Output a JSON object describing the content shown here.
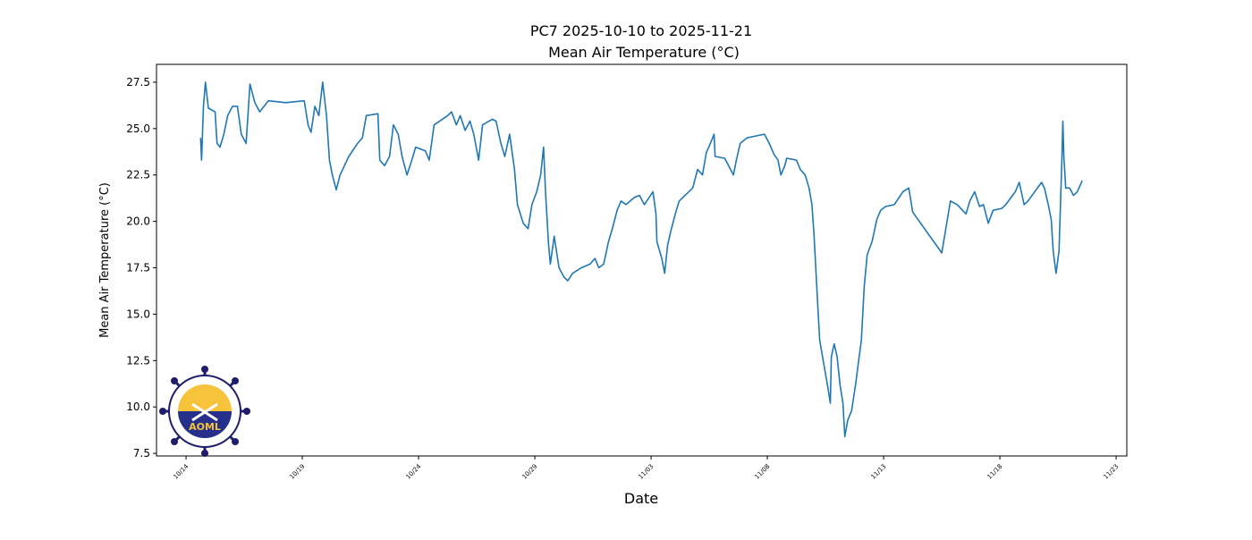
{
  "chart_data": {
    "type": "line",
    "title": "PC7 2025-10-10 to 2025-11-21",
    "subtitle": "Mean Air Temperature (°C)",
    "xlabel": "Date",
    "ylabel": "Mean Air Temperature (°C)",
    "color": "#1f77b4",
    "xlim": [
      "2025-10-12T17:30",
      "2025-11-23T11:00"
    ],
    "ylim": [
      7.36,
      28.46
    ],
    "xticks": [
      {
        "value": "2025-10-14T00:00",
        "label": "10/14"
      },
      {
        "value": "2025-10-19T00:00",
        "label": "10/19"
      },
      {
        "value": "2025-10-24T00:00",
        "label": "10/24"
      },
      {
        "value": "2025-10-29T00:00",
        "label": "10/29"
      },
      {
        "value": "2025-11-03T00:00",
        "label": "11/03"
      },
      {
        "value": "2025-11-08T00:00",
        "label": "11/08"
      },
      {
        "value": "2025-11-13T00:00",
        "label": "11/13"
      },
      {
        "value": "2025-11-18T00:00",
        "label": "11/18"
      },
      {
        "value": "2025-11-23T00:00",
        "label": "11/23"
      }
    ],
    "yticks": [
      7.5,
      {
        "value": 10,
        "label": "10.0"
      },
      12.5,
      {
        "value": 15,
        "label": "15.0"
      },
      17.5,
      {
        "value": 20,
        "label": "20.0"
      },
      22.5,
      {
        "value": 25,
        "label": "25.0"
      },
      27.5
    ],
    "x": [
      "2025-10-14T15:00",
      "2025-10-14T16:00",
      "2025-10-14T18:00",
      "2025-10-14T20:00",
      "2025-10-14T23:00",
      "2025-10-15T06:00",
      "2025-10-15T08:00",
      "2025-10-15T11:00",
      "2025-10-15T15:00",
      "2025-10-15T19:00",
      "2025-10-16T00:00",
      "2025-10-16T05:00",
      "2025-10-16T09:00",
      "2025-10-16T14:00",
      "2025-10-16T18:00",
      "2025-10-16T23:00",
      "2025-10-17T04:00",
      "2025-10-17T13:00",
      "2025-10-18T07:00",
      "2025-10-19T02:00",
      "2025-10-19T06:00",
      "2025-10-19T09:00",
      "2025-10-19T13:00",
      "2025-10-19T17:00",
      "2025-10-19T21:00",
      "2025-10-20T01:00",
      "2025-10-20T04:00",
      "2025-10-20T07:00",
      "2025-10-20T11:00",
      "2025-10-20T15:00",
      "2025-10-21T00:00",
      "2025-10-21T09:00",
      "2025-10-21T14:00",
      "2025-10-21T18:00",
      "2025-10-22T06:00",
      "2025-10-22T08:00",
      "2025-10-22T13:00",
      "2025-10-22T18:00",
      "2025-10-22T22:00",
      "2025-10-23T03:00",
      "2025-10-23T07:00",
      "2025-10-23T12:00",
      "2025-10-23T17:00",
      "2025-10-23T21:00",
      "2025-10-24T07:00",
      "2025-10-24T11:00",
      "2025-10-24T16:00",
      "2025-10-25T06:00",
      "2025-10-25T10:00",
      "2025-10-25T15:00",
      "2025-10-25T19:00",
      "2025-10-26T00:00",
      "2025-10-26T05:00",
      "2025-10-26T09:00",
      "2025-10-26T14:00",
      "2025-10-26T18:00",
      "2025-10-27T04:00",
      "2025-10-27T08:00",
      "2025-10-27T13:00",
      "2025-10-27T17:00",
      "2025-10-27T22:00",
      "2025-10-28T03:00",
      "2025-10-28T06:00",
      "2025-10-28T12:00",
      "2025-10-28T17:00",
      "2025-10-28T21:00",
      "2025-10-29T02:00",
      "2025-10-29T06:00",
      "2025-10-29T09:00",
      "2025-10-29T11:00",
      "2025-10-29T14:00",
      "2025-10-29T16:00",
      "2025-10-29T20:00",
      "2025-10-30T01:00",
      "2025-10-30T06:00",
      "2025-10-30T10:00",
      "2025-10-30T15:00",
      "2025-10-31T00:00",
      "2025-10-31T09:00",
      "2025-10-31T14:00",
      "2025-10-31T18:00",
      "2025-10-31T23:00",
      "2025-11-01T04:00",
      "2025-11-01T08:00",
      "2025-11-01T13:00",
      "2025-11-01T17:00",
      "2025-11-01T22:00",
      "2025-11-02T07:00",
      "2025-11-02T12:00",
      "2025-11-02T17:00",
      "2025-11-03T02:00",
      "2025-11-03T05:00",
      "2025-11-03T06:00",
      "2025-11-03T11:00",
      "2025-11-03T14:00",
      "2025-11-03T17:00",
      "2025-11-03T20:00",
      "2025-11-04T01:00",
      "2025-11-04T05:00",
      "2025-11-04T15:00",
      "2025-11-04T19:00",
      "2025-11-05T00:00",
      "2025-11-05T05:00",
      "2025-11-05T09:00",
      "2025-11-05T14:00",
      "2025-11-05T17:00",
      "2025-11-05T18:00",
      "2025-11-06T04:00",
      "2025-11-06T08:00",
      "2025-11-06T13:00",
      "2025-11-06T16:00",
      "2025-11-06T20:00",
      "2025-11-07T03:00",
      "2025-11-07T12:00",
      "2025-11-07T21:00",
      "2025-11-08T02:00",
      "2025-11-08T07:00",
      "2025-11-08T11:00",
      "2025-11-08T14:00",
      "2025-11-08T18:00",
      "2025-11-08T20:00",
      "2025-11-09T06:00",
      "2025-11-09T10:00",
      "2025-11-09T15:00",
      "2025-11-09T19:00",
      "2025-11-09T22:00",
      "2025-11-10T00:00",
      "2025-11-10T02:00",
      "2025-11-10T04:00",
      "2025-11-10T06:00",
      "2025-11-10T09:00",
      "2025-11-10T14:00",
      "2025-11-10T17:00",
      "2025-11-10T18:00",
      "2025-11-10T21:00",
      "2025-11-11T00:00",
      "2025-11-11T03:00",
      "2025-11-11T06:00",
      "2025-11-11T08:00",
      "2025-11-11T11:00",
      "2025-11-11T15:00",
      "2025-11-11T19:00",
      "2025-11-11T22:00",
      "2025-11-12T01:00",
      "2025-11-12T04:00",
      "2025-11-12T07:00",
      "2025-11-12T12:00",
      "2025-11-12T17:00",
      "2025-11-12T21:00",
      "2025-11-13T02:00",
      "2025-11-13T11:00",
      "2025-11-13T20:00",
      "2025-11-14T02:00",
      "2025-11-14T06:00",
      "2025-11-15T12:00",
      "2025-11-15T21:00",
      "2025-11-16T04:00",
      "2025-11-16T13:00",
      "2025-11-16T17:00",
      "2025-11-16T22:00",
      "2025-11-17T03:00",
      "2025-11-17T07:00",
      "2025-11-17T12:00",
      "2025-11-17T17:00",
      "2025-11-18T02:00",
      "2025-11-18T06:00",
      "2025-11-18T16:00",
      "2025-11-18T20:00",
      "2025-11-19T01:00",
      "2025-11-19T05:00",
      "2025-11-19T19:00",
      "2025-11-19T22:00",
      "2025-11-20T02:00",
      "2025-11-20T05:00",
      "2025-11-20T07:00",
      "2025-11-20T10:00",
      "2025-11-20T13:00",
      "2025-11-20T16:00",
      "2025-11-20T17:00",
      "2025-11-20T18:00",
      "2025-11-20T20:00",
      "2025-11-21T00:00",
      "2025-11-21T04:00",
      "2025-11-21T08:00",
      "2025-11-21T13:00"
    ],
    "values": [
      24.5,
      23.3,
      26.2,
      27.5,
      26.1,
      25.9,
      24.2,
      24.0,
      24.7,
      25.7,
      26.2,
      26.2,
      24.7,
      24.2,
      27.4,
      26.4,
      25.9,
      26.5,
      26.4,
      26.5,
      25.2,
      24.8,
      26.2,
      25.7,
      27.5,
      25.7,
      23.3,
      22.5,
      21.7,
      22.5,
      23.5,
      24.2,
      24.5,
      25.7,
      25.8,
      23.3,
      23.0,
      23.5,
      25.2,
      24.7,
      23.5,
      22.5,
      23.3,
      24.0,
      23.8,
      23.3,
      25.2,
      25.7,
      25.9,
      25.2,
      25.7,
      24.9,
      25.4,
      24.7,
      23.3,
      25.2,
      25.5,
      25.4,
      24.2,
      23.5,
      24.7,
      22.8,
      20.9,
      19.9,
      19.6,
      20.9,
      21.6,
      22.5,
      24.0,
      21.6,
      18.9,
      17.7,
      19.2,
      17.5,
      17.0,
      16.8,
      17.2,
      17.5,
      17.7,
      18.0,
      17.5,
      17.7,
      18.9,
      19.6,
      20.6,
      21.1,
      20.9,
      21.3,
      21.4,
      20.9,
      21.6,
      20.4,
      18.9,
      18.0,
      17.2,
      18.7,
      19.4,
      20.4,
      21.1,
      21.6,
      21.8,
      22.8,
      22.5,
      23.7,
      24.3,
      24.7,
      23.5,
      23.4,
      23.0,
      22.5,
      23.3,
      24.2,
      24.5,
      24.6,
      24.7,
      24.2,
      23.6,
      23.3,
      22.5,
      23.0,
      23.4,
      23.3,
      22.8,
      22.5,
      21.8,
      20.9,
      19.4,
      17.5,
      15.5,
      13.6,
      12.7,
      11.2,
      10.2,
      12.7,
      13.4,
      12.7,
      11.2,
      10.2,
      8.4,
      9.3,
      9.8,
      11.2,
      12.4,
      13.6,
      16.5,
      18.2,
      18.9,
      20.1,
      20.6,
      20.8,
      20.9,
      21.6,
      21.8,
      20.5,
      18.3,
      21.1,
      20.9,
      20.4,
      21.1,
      21.6,
      20.8,
      20.9,
      19.9,
      20.6,
      20.7,
      20.9,
      21.6,
      22.1,
      20.9,
      21.1,
      22.1,
      21.8,
      20.9,
      20.1,
      18.4,
      17.2,
      18.4,
      23.3,
      25.4,
      23.5,
      21.8,
      21.8,
      21.4,
      21.6,
      22.2
    ]
  },
  "logo": {
    "text": "AOML"
  }
}
